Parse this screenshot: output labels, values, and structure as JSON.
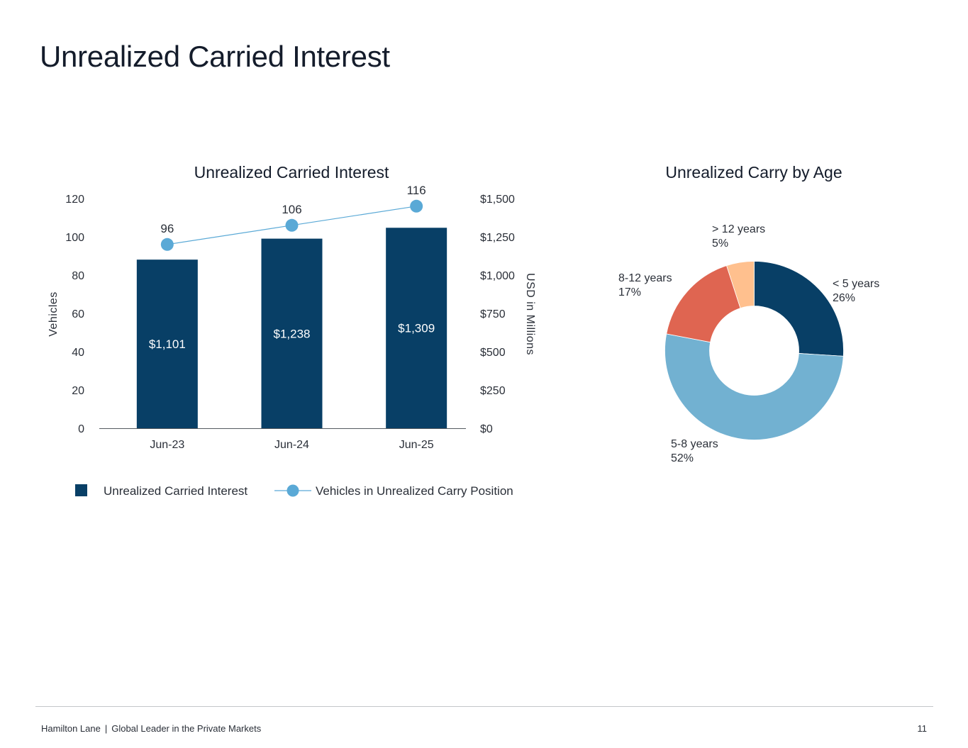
{
  "page": {
    "title": "Unrealized Carried Interest"
  },
  "colors": {
    "bar": "#083f66",
    "line": "#5aa9d6",
    "slices": [
      "#083f66",
      "#72b1d1",
      "#df6551",
      "#ffc08e"
    ]
  },
  "chart_data": [
    {
      "type": "bar",
      "title": "Unrealized Carried Interest",
      "categories": [
        "Jun-23",
        "Jun-24",
        "Jun-25"
      ],
      "series": [
        {
          "name": "Unrealized Carried Interest",
          "type": "bar",
          "axis": "right",
          "values": [
            1101,
            1238,
            1309
          ],
          "labels": [
            "$1,101",
            "$1,238",
            "$1,309"
          ]
        },
        {
          "name": "Vehicles in Unrealized Carry Position",
          "type": "line",
          "axis": "left",
          "values": [
            96,
            106,
            116
          ],
          "labels": [
            "96",
            "106",
            "116"
          ]
        }
      ],
      "y_left": {
        "label": "Vehicles",
        "ylim": [
          0,
          120
        ],
        "ticks": [
          "0",
          "20",
          "40",
          "60",
          "80",
          "100",
          "120"
        ]
      },
      "y_right": {
        "label": "USD in Millions",
        "ylim": [
          0,
          1500
        ],
        "ticks": [
          "$0",
          "$250",
          "$500",
          "$750",
          "$1,000",
          "$1,250",
          "$1,500"
        ]
      },
      "grid": false,
      "legend_position": "bottom-left"
    },
    {
      "type": "pie",
      "donut": true,
      "title": "Unrealized Carry by Age",
      "slices": [
        {
          "name": "< 5 years",
          "value": 26,
          "label": "26%"
        },
        {
          "name": "5-8 years",
          "value": 52,
          "label": "52%"
        },
        {
          "name": "8-12 years",
          "value": 17,
          "label": "17%"
        },
        {
          "name": "> 12 years",
          "value": 5,
          "label": "5%"
        }
      ]
    }
  ],
  "footer": {
    "company": "Hamilton Lane",
    "separator": "|",
    "tagline": "Global Leader in the Private Markets",
    "page_number": "11"
  }
}
